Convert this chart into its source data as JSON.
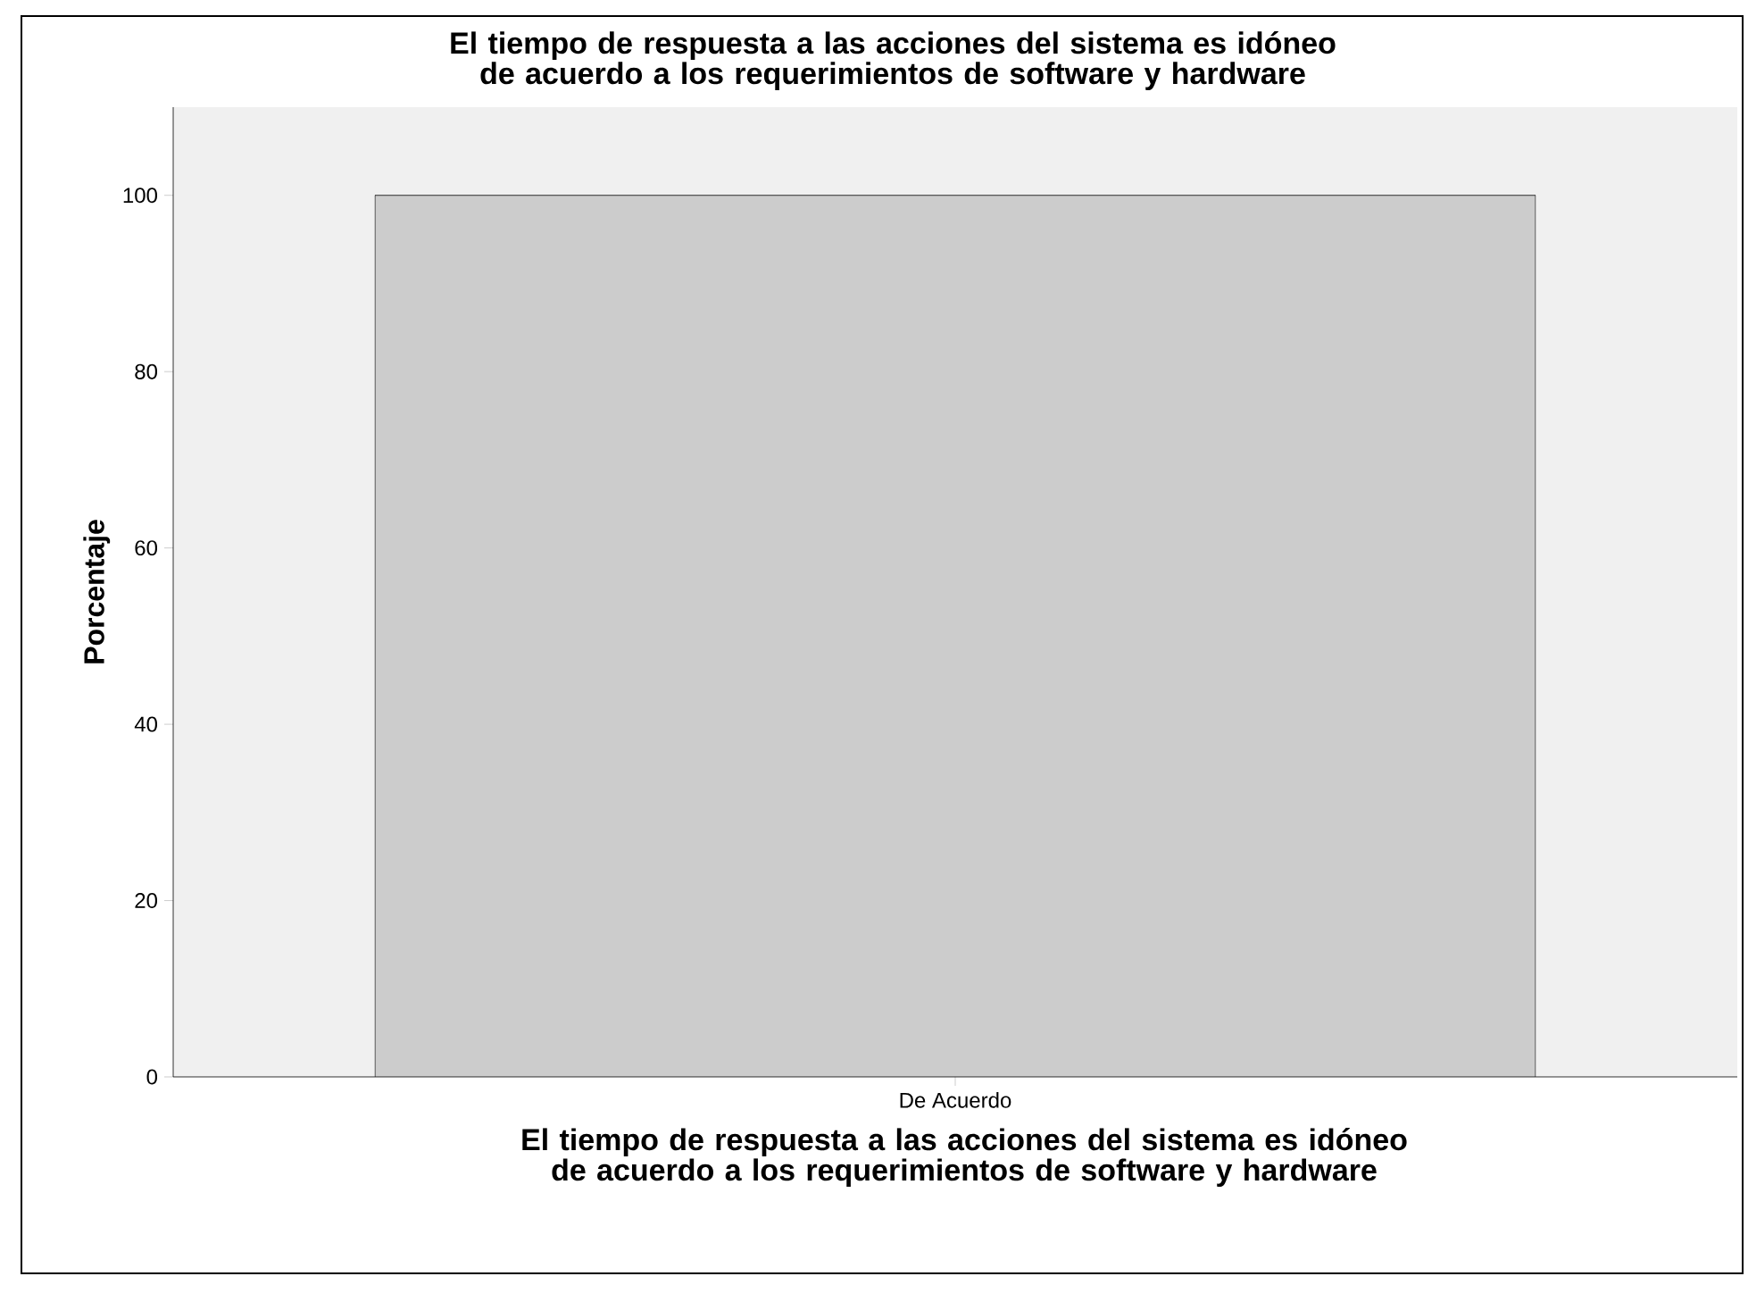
{
  "chart_data": {
    "type": "bar",
    "title": "El tiempo de respuesta a las acciones del sistema es idóneo de acuerdo a los requerimientos de software y hardware",
    "xlabel": "El tiempo de respuesta a las acciones del sistema es idóneo de acuerdo a los requerimientos de software y hardware",
    "ylabel": "Porcentaje",
    "categories": [
      "De Acuerdo"
    ],
    "values": [
      100
    ],
    "color": "#cccccc",
    "ylim": [
      0,
      110
    ],
    "yticks": [
      0,
      20,
      40,
      60,
      80,
      100
    ]
  }
}
